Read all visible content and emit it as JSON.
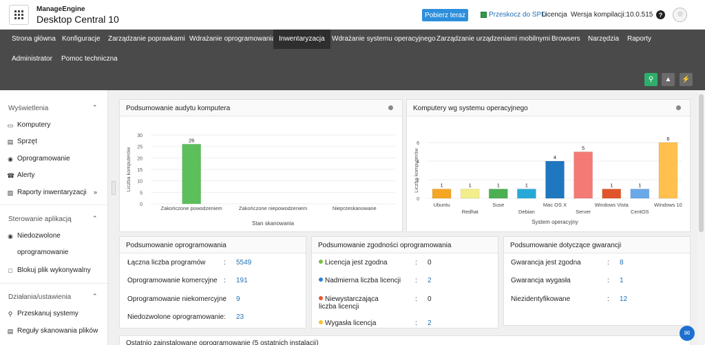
{
  "header": {
    "brand_top": "ManageEngine",
    "brand_name": "Desktop Central 10",
    "download_label": "Pobierz teraz",
    "spd_label": "Przeskocz do SPD",
    "license_label": "Licencja",
    "build_label": "Wersja kompilacji:10.0.515",
    "help_label": "?"
  },
  "nav": {
    "items": [
      "Strona główna",
      "Konfiguracje",
      "Zarządzanie poprawkami",
      "Wdrażanie oprogramowania",
      "Inwentaryzacja",
      "Wdrażanie systemu operacyjnego",
      "Zarządzanie urządzeniami mobilnymi",
      "Browsers",
      "Narzędzia",
      "Raporty",
      "Administrator",
      "Pomoc techniczna"
    ],
    "active": "Inwentaryzacja",
    "tools": [
      {
        "icon": "search-icon",
        "color": "#2fae6b"
      },
      {
        "icon": "rocket-icon",
        "color": "#6b6b6b"
      },
      {
        "icon": "bolt-icon",
        "color": "#6b6b6b"
      }
    ]
  },
  "sidebar": {
    "sections": [
      {
        "title": "Wyświetlenia",
        "items": [
          "Komputery",
          "Sprzęt",
          "Oprogramowanie",
          "Alerty",
          "Raporty inwentaryzacji"
        ]
      },
      {
        "title": "Sterowanie aplikacją",
        "items": [
          "Niedozwolone oprogramowanie",
          "Blokuj plik wykonywalny"
        ]
      },
      {
        "title": "Działania/ustawienia",
        "items": [
          "Przeskanuj systemy",
          "Reguły skanowania plików"
        ]
      }
    ],
    "item_icons": [
      "monitor-icon",
      "hardware-icon",
      "software-icon",
      "alert-icon",
      "report-icon",
      "blocked-icon",
      "block-file-icon",
      "scan-icon",
      "rules-icon"
    ]
  },
  "audit_card": {
    "title": "Podsumowanie audytu komputera"
  },
  "os_card": {
    "title": "Komputery wg systemu operacyjnego"
  },
  "chart_data": [
    {
      "type": "bar",
      "categories": [
        "Zakończone powodzeniem",
        "Zakończone niepowodzeniem",
        "Nieprzeskanowane"
      ],
      "values": [
        26,
        0,
        0
      ],
      "title": "",
      "xlabel": "Stan skanowania",
      "ylabel": "Liczba komputerów",
      "ylim": [
        0,
        30
      ],
      "yticks": [
        "0",
        "5",
        "10",
        "15",
        "20",
        "25",
        "30"
      ],
      "colors": [
        "#5cbf5c",
        "#5cbf5c",
        "#5cbf5c"
      ],
      "data_labels": [
        "26",
        "",
        ""
      ],
      "grid": true
    },
    {
      "type": "bar",
      "categories": [
        "Ubuntu",
        "Redhat",
        "Suse",
        "Debian",
        "Mac OS X",
        "Server",
        "Windows Vista",
        "CentOS",
        "Windows 10"
      ],
      "values": [
        1,
        1,
        1,
        1,
        4,
        5,
        1,
        1,
        6
      ],
      "title": "",
      "xlabel": "System operacyjny",
      "ylabel": "Liczba komputerów",
      "ylim": [
        0,
        6
      ],
      "yticks": [
        "0",
        "2",
        "4",
        "6"
      ],
      "colors": [
        "#f5a623",
        "#f2ee8c",
        "#4caf50",
        "#27a9d8",
        "#1f77c0",
        "#f47a75",
        "#e0552b",
        "#6aa9e8",
        "#ffc04d"
      ],
      "data_labels": [
        "1",
        "1",
        "1",
        "1",
        "4",
        "5",
        "1",
        "1",
        "6"
      ],
      "grid": true
    }
  ],
  "software_summary": {
    "title": "Podsumowanie oprogramowania",
    "rows": [
      {
        "label": "Łączna liczba programów",
        "value": "5549"
      },
      {
        "label": "Oprogramowanie komercyjne",
        "value": "191"
      },
      {
        "label": "Oprogramowanie niekomercyjne",
        "value": "9"
      },
      {
        "label": "Niedozwolone oprogramowanie",
        "value": "23"
      }
    ]
  },
  "compliance_summary": {
    "title": "Podsumowanie zgodności oprogramowania",
    "rows": [
      {
        "label": "Licencja jest zgodna",
        "value": "0",
        "color": "#7ac142",
        "link": false
      },
      {
        "label": "Nadmierna liczba licencji",
        "value": "2",
        "color": "#2a7fd4",
        "link": true
      },
      {
        "label": "Niewystarczająca liczba licencji",
        "value": "0",
        "color": "#e8562a",
        "link": false
      },
      {
        "label": "Wygasła licencja",
        "value": "2",
        "color": "#f5c12e",
        "link": true
      }
    ]
  },
  "warranty_summary": {
    "title": "Podsumowanie dotyczące gwarancji",
    "rows": [
      {
        "label": "Gwarancja jest zgodna",
        "value": "8"
      },
      {
        "label": "Gwarancja wygasła",
        "value": "1"
      },
      {
        "label": "Niezidentyfikowane",
        "value": "12"
      }
    ]
  },
  "bottom_card": {
    "title": "Ostatnio zainstalowane oprogramowanie (5 ostatnich instalacji)"
  },
  "colon": ":"
}
